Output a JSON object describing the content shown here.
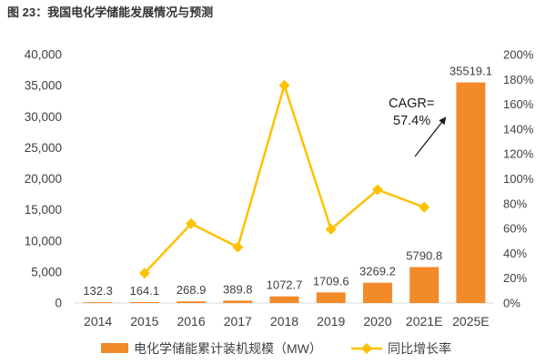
{
  "chart_data": {
    "type": "bar",
    "title": "图 23：我国电化学储能发展情况与预测",
    "categories": [
      "2014",
      "2015",
      "2016",
      "2017",
      "2018",
      "2019",
      "2020",
      "2021E",
      "2025E"
    ],
    "series": [
      {
        "name": "电化学储能累计装机规模（MW）",
        "type": "bar",
        "axis": "left",
        "color": "#F28A2A",
        "values": [
          132.3,
          164.1,
          268.9,
          389.8,
          1072.7,
          1709.6,
          3269.2,
          5790.8,
          35519.1
        ]
      },
      {
        "name": "同比增长率",
        "type": "line",
        "axis": "right",
        "color": "#FFC000",
        "values": [
          null,
          24.0,
          63.9,
          45.0,
          175.2,
          59.4,
          91.2,
          77.1,
          null
        ]
      }
    ],
    "ylim": [
      0,
      40000
    ],
    "y2lim": [
      0,
      200
    ],
    "ytick_labels": [
      "0",
      "5,000",
      "10,000",
      "15,000",
      "20,000",
      "25,000",
      "30,000",
      "35,000",
      "40,000"
    ],
    "y2tick_labels": [
      "0%",
      "20%",
      "40%",
      "60%",
      "80%",
      "100%",
      "120%",
      "140%",
      "160%",
      "180%",
      "200%"
    ],
    "grid": false,
    "legend": {
      "position": "bottom"
    },
    "annotation": {
      "lines": [
        "CAGR=",
        "57.4%"
      ],
      "color": "#1a1a1a"
    },
    "text_color": "#404040",
    "axis_color": "#D9D9D9"
  }
}
